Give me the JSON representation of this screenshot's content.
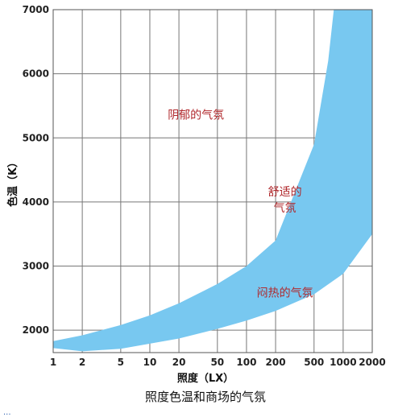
{
  "chart_data": {
    "type": "area",
    "title": "照度色温和商场的气氛",
    "xlabel": "照度（LX）",
    "ylabel": "色温（K）",
    "x_scale": "log",
    "xlim": [
      1,
      2000
    ],
    "ylim": [
      1650,
      7000
    ],
    "grid": true,
    "x_ticks": [
      1,
      2,
      5,
      10,
      20,
      50,
      100,
      200,
      500,
      1000,
      2000
    ],
    "x_tick_labels": [
      "1",
      "2",
      "5",
      "10",
      "20",
      "50",
      "100",
      "200",
      "500",
      "1000",
      "2000"
    ],
    "y_ticks": [
      2000,
      3000,
      4000,
      5000,
      6000,
      7000
    ],
    "y_tick_labels": [
      "2000",
      "3000",
      "4000",
      "5000",
      "6000",
      "7000"
    ],
    "band_color": "#78c8f0",
    "label_color": "#b0282c",
    "series": [
      {
        "name": "upper",
        "x": [
          1,
          2,
          5,
          10,
          20,
          50,
          100,
          200,
          500,
          700,
          800
        ],
        "y": [
          1830,
          1920,
          2080,
          2230,
          2420,
          2720,
          3000,
          3400,
          4900,
          6200,
          7000
        ]
      },
      {
        "name": "lower",
        "x": [
          1,
          2,
          5,
          10,
          20,
          50,
          100,
          200,
          500,
          1000,
          2000
        ],
        "y": [
          1720,
          1670,
          1710,
          1790,
          1870,
          2020,
          2150,
          2300,
          2560,
          2880,
          3500
        ]
      }
    ],
    "annotations": [
      {
        "text": "阴郁的气氛",
        "x": 30,
        "y": 5300
      },
      {
        "text": "舒适的",
        "x": 250,
        "y": 4100
      },
      {
        "text": "气氛",
        "x": 250,
        "y": 3850
      },
      {
        "text": "闷热的气氛",
        "x": 250,
        "y": 2520
      }
    ]
  },
  "footer_text": "..."
}
